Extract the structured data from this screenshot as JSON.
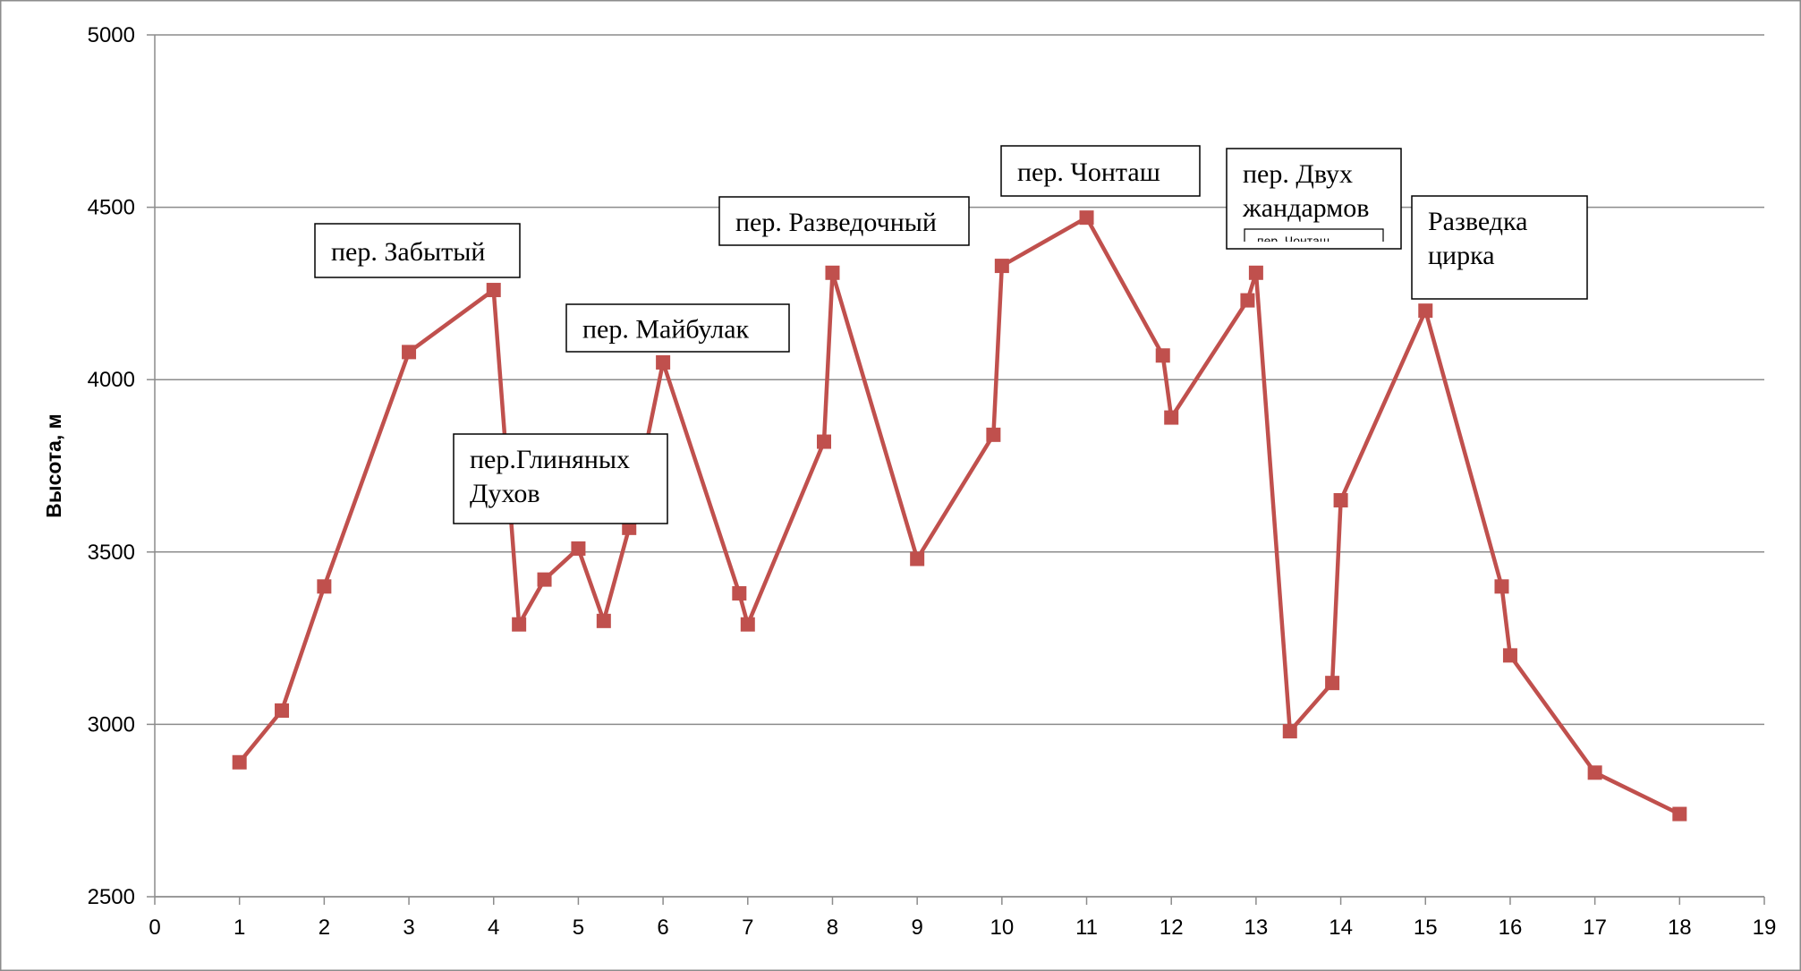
{
  "chart_data": {
    "type": "line",
    "title": "",
    "xlabel": "",
    "ylabel": "Высота, м",
    "xlim": [
      0,
      19
    ],
    "ylim": [
      2500,
      5000
    ],
    "x_ticks": [
      "0",
      "1",
      "2",
      "3",
      "4",
      "5",
      "6",
      "7",
      "8",
      "9",
      "10",
      "11",
      "12",
      "13",
      "14",
      "15",
      "16",
      "17",
      "18",
      "19"
    ],
    "y_ticks": [
      "2500",
      "3000",
      "3500",
      "4000",
      "4500",
      "5000"
    ],
    "grid": "horizontal",
    "legend": "none",
    "series": [
      {
        "color": "#c0504d",
        "marker": "square",
        "x": [
          1,
          1.5,
          2,
          3,
          4,
          4.3,
          4.6,
          5,
          5.3,
          5.6,
          6,
          6.9,
          7,
          7.9,
          8,
          9,
          9.9,
          10,
          11,
          11.9,
          12,
          12.9,
          13,
          13.4,
          13.9,
          14,
          15,
          15.9,
          16,
          17,
          18
        ],
        "y": [
          2890,
          3040,
          3400,
          4080,
          4260,
          3290,
          3420,
          3510,
          3300,
          3570,
          4050,
          3380,
          3290,
          3820,
          4310,
          3480,
          3840,
          4330,
          4470,
          4070,
          3890,
          4230,
          4310,
          2980,
          3120,
          3650,
          4200,
          3400,
          3200,
          2860,
          2740
        ]
      }
    ],
    "annotations": [
      {
        "lines": [
          "пер. Забытый"
        ]
      },
      {
        "lines": [
          "пер.Глиняных",
          "Духов"
        ]
      },
      {
        "lines": [
          "пер. Майбулак"
        ]
      },
      {
        "lines": [
          "пер. Разведочный"
        ]
      },
      {
        "lines": [
          "пер. Чонташ"
        ]
      },
      {
        "lines": [
          "пер. Двух",
          "жандармов"
        ],
        "clipped_line": "пер. Чонташ"
      },
      {
        "lines": [
          "Разведка",
          "цирка"
        ]
      }
    ]
  }
}
